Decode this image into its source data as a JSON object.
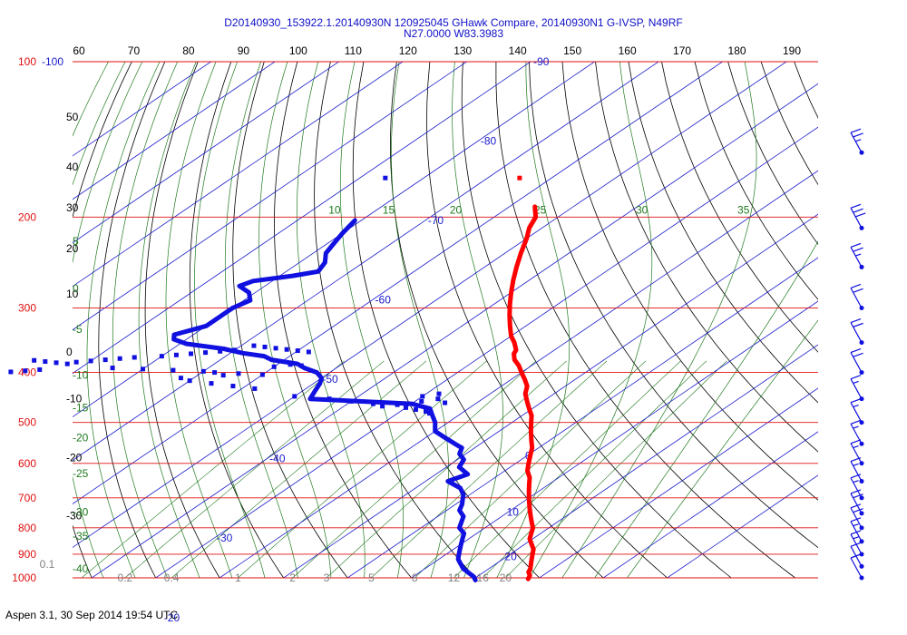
{
  "title_lines": [
    "D20140930_153922.1.20140930N 120925045 GHawk Compare, 20140930N1 G-IVSP, N49RF",
    "N27.0000 W83.3983"
  ],
  "footer": "Aspen 3.1, 30 Sep 2014  19:54 UTC",
  "colors": {
    "isobar": "#e01010",
    "temperature_trace": "#ff0000",
    "dewpoint_trace": "#1010e0",
    "isotherm": "#1a1acc",
    "dry_adiabat": "#000000",
    "moist_adiabat": "#1f7a1f",
    "mixing_ratio": "#1f7a1f",
    "wind_barb": "#1010e0"
  },
  "chart_data": {
    "type": "scatter",
    "subtype": "skew-T log-P thermodynamic diagram",
    "pressure_axis": {
      "unit": "hPa",
      "scale": "log",
      "ticks": [
        "100",
        "200",
        "300",
        "400",
        "500",
        "600",
        "700",
        "800",
        "900",
        "1000"
      ],
      "ticks_values": [
        100,
        200,
        300,
        400,
        500,
        600,
        700,
        800,
        900,
        1000
      ]
    },
    "top_axis": {
      "ticks": [
        "60",
        "70",
        "80",
        "90",
        "100",
        "110",
        "120",
        "130",
        "140",
        "150",
        "160",
        "170",
        "180",
        "190"
      ]
    },
    "isotherm_labels": [
      {
        "text": "-100",
        "t": -100
      },
      {
        "text": "-90",
        "t": -90
      },
      {
        "text": "-80",
        "t": -80
      },
      {
        "text": "-70",
        "t": -70
      },
      {
        "text": "-60",
        "t": -60
      },
      {
        "text": "-50",
        "t": -50
      },
      {
        "text": "-40",
        "t": -40
      },
      {
        "text": "-30",
        "t": -30
      },
      {
        "text": "-20",
        "t": -20
      },
      {
        "text": "0",
        "t": 0
      },
      {
        "text": "10",
        "t": 10
      },
      {
        "text": "20",
        "t": 20
      }
    ],
    "left_dry_adiabat_labels": [
      {
        "text": "50",
        "p": 128
      },
      {
        "text": "40",
        "p": 160
      },
      {
        "text": "30",
        "p": 192
      },
      {
        "text": "20",
        "p": 230
      },
      {
        "text": "10",
        "p": 282
      },
      {
        "text": "0",
        "p": 365
      },
      {
        "text": "-10",
        "p": 450
      },
      {
        "text": "-20",
        "p": 585
      },
      {
        "text": "-30",
        "p": 758
      }
    ],
    "left_moist_labels": [
      {
        "text": "5",
        "p": 223
      },
      {
        "text": "0",
        "p": 275
      },
      {
        "text": "-5",
        "p": 330
      },
      {
        "text": "-10",
        "p": 405
      },
      {
        "text": "-15",
        "p": 468
      },
      {
        "text": "-20",
        "p": 535
      },
      {
        "text": "-25",
        "p": 628
      },
      {
        "text": "-30",
        "p": 745
      },
      {
        "text": "-35",
        "p": 830
      },
      {
        "text": "-40",
        "p": 960
      }
    ],
    "moist_labels_200hPa": [
      {
        "text": "10",
        "t": 10
      },
      {
        "text": "15",
        "t": 15
      },
      {
        "text": "20",
        "t": 20
      },
      {
        "text": "25",
        "t": 25
      },
      {
        "text": "30",
        "t": 30
      },
      {
        "text": "35",
        "t": 35
      }
    ],
    "mixing_ratio_labels": [
      {
        "text": "0.1",
        "w": 0.1
      },
      {
        "text": "0.2",
        "w": 0.2
      },
      {
        "text": "0.4",
        "w": 0.4
      },
      {
        "text": "1",
        "w": 1
      },
      {
        "text": "2",
        "w": 2
      },
      {
        "text": "3",
        "w": 3
      },
      {
        "text": "5",
        "w": 5
      },
      {
        "text": "8",
        "w": 8
      },
      {
        "text": "12",
        "w": 12
      },
      {
        "text": "16",
        "w": 16
      },
      {
        "text": "20",
        "w": 20
      }
    ],
    "series": [
      {
        "temperature": [
          [
            191,
            -56
          ],
          [
            200,
            -53.5
          ],
          [
            210,
            -52
          ],
          [
            220,
            -50
          ],
          [
            235,
            -47.5
          ],
          [
            250,
            -45
          ],
          [
            265,
            -42.5
          ],
          [
            280,
            -40
          ],
          [
            295,
            -37.5
          ],
          [
            310,
            -35
          ],
          [
            325,
            -32.5
          ],
          [
            340,
            -30
          ],
          [
            350,
            -28
          ],
          [
            362,
            -26
          ],
          [
            368,
            -25.5
          ],
          [
            378,
            -24
          ],
          [
            388,
            -22
          ],
          [
            400,
            -20
          ],
          [
            412,
            -18
          ],
          [
            425,
            -16
          ],
          [
            440,
            -14.5
          ],
          [
            455,
            -12.5
          ],
          [
            470,
            -10.5
          ],
          [
            485,
            -8.5
          ],
          [
            500,
            -7
          ],
          [
            520,
            -5
          ],
          [
            540,
            -3
          ],
          [
            560,
            -1
          ],
          [
            580,
            0.5
          ],
          [
            600,
            2
          ],
          [
            620,
            3.5
          ],
          [
            640,
            5.5
          ],
          [
            660,
            7
          ],
          [
            680,
            8.5
          ],
          [
            700,
            10
          ],
          [
            720,
            11.5
          ],
          [
            740,
            13
          ],
          [
            760,
            14.5
          ],
          [
            780,
            16
          ],
          [
            800,
            17.5
          ],
          [
            820,
            18.5
          ],
          [
            840,
            19.5
          ],
          [
            860,
            21
          ],
          [
            880,
            22.5
          ],
          [
            900,
            23.5
          ],
          [
            920,
            24.5
          ],
          [
            940,
            25.5
          ],
          [
            960,
            26.5
          ],
          [
            975,
            27
          ],
          [
            990,
            28
          ],
          [
            1005,
            28.5
          ]
        ],
        "temperature_isolated": [
          [
            168,
            -65
          ]
        ],
        "dewpoint": [
          [
            203,
            -81
          ],
          [
            215,
            -80
          ],
          [
            225,
            -79
          ],
          [
            235,
            -78
          ],
          [
            245,
            -76
          ],
          [
            255,
            -75
          ],
          [
            260,
            -78
          ],
          [
            266,
            -83
          ],
          [
            272,
            -84
          ],
          [
            280,
            -81
          ],
          [
            290,
            -79
          ],
          [
            300,
            -80
          ],
          [
            312,
            -80
          ],
          [
            325,
            -80
          ],
          [
            338,
            -83
          ],
          [
            345,
            -82
          ],
          [
            352,
            -79
          ],
          [
            360,
            -72
          ],
          [
            367,
            -68
          ],
          [
            372,
            -64
          ],
          [
            378,
            -62
          ],
          [
            385,
            -57
          ],
          [
            392,
            -55
          ],
          [
            400,
            -52
          ],
          [
            410,
            -50
          ],
          [
            420,
            -49
          ],
          [
            435,
            -48
          ],
          [
            450,
            -47
          ],
          [
            460,
            -30
          ],
          [
            470,
            -26
          ],
          [
            485,
            -24
          ],
          [
            500,
            -22
          ],
          [
            510,
            -21
          ],
          [
            520,
            -20
          ],
          [
            535,
            -17
          ],
          [
            550,
            -14
          ],
          [
            560,
            -12
          ],
          [
            575,
            -11
          ],
          [
            590,
            -9
          ],
          [
            610,
            -8
          ],
          [
            630,
            -5
          ],
          [
            650,
            -6.5
          ],
          [
            670,
            -3
          ],
          [
            690,
            -1
          ],
          [
            705,
            0
          ],
          [
            720,
            1
          ],
          [
            740,
            2
          ],
          [
            760,
            4
          ],
          [
            780,
            5
          ],
          [
            800,
            6
          ],
          [
            820,
            8
          ],
          [
            840,
            9
          ],
          [
            860,
            10
          ],
          [
            880,
            11
          ],
          [
            900,
            12
          ],
          [
            920,
            13
          ],
          [
            940,
            14.5
          ],
          [
            960,
            16
          ],
          [
            980,
            18
          ],
          [
            995,
            19.5
          ],
          [
            1010,
            20.5
          ]
        ],
        "dewpoint_scatter": [
          [
            168,
            -86
          ],
          [
            355,
            -68
          ],
          [
            357,
            -66
          ],
          [
            359,
            -64
          ],
          [
            361,
            -62
          ],
          [
            363,
            -60
          ],
          [
            365,
            -58
          ],
          [
            362,
            -70
          ],
          [
            364,
            -72
          ],
          [
            366,
            -74
          ],
          [
            368,
            -76
          ],
          [
            370,
            -78
          ],
          [
            372,
            -80
          ],
          [
            374,
            -84
          ],
          [
            376,
            -86
          ],
          [
            378,
            -88
          ],
          [
            380,
            -90
          ],
          [
            382,
            -92
          ],
          [
            385,
            -93
          ],
          [
            383,
            -95
          ],
          [
            381,
            -97
          ],
          [
            379,
            -99
          ],
          [
            395,
            -96
          ],
          [
            397,
            -98
          ],
          [
            399,
            -100
          ],
          [
            401,
            -102
          ],
          [
            403,
            -104
          ],
          [
            392,
            -85
          ],
          [
            394,
            -80
          ],
          [
            396,
            -75
          ],
          [
            398,
            -70
          ],
          [
            400,
            -68
          ],
          [
            402,
            -64
          ],
          [
            404,
            -60
          ],
          [
            386,
            -58
          ],
          [
            388,
            -56
          ],
          [
            390,
            -60
          ],
          [
            405,
            -66
          ],
          [
            410,
            -72
          ],
          [
            415,
            -70
          ],
          [
            420,
            -66
          ],
          [
            425,
            -62
          ],
          [
            430,
            -58
          ],
          [
            445,
            -50
          ],
          [
            450,
            -44
          ],
          [
            455,
            -40
          ],
          [
            460,
            -36
          ],
          [
            462,
            -32
          ],
          [
            465,
            -34
          ],
          [
            468,
            -30
          ],
          [
            472,
            -28
          ],
          [
            476,
            -26
          ],
          [
            480,
            -25
          ],
          [
            445,
            -30
          ],
          [
            440,
            -28
          ],
          [
            450,
            -27
          ],
          [
            455,
            -29
          ],
          [
            458,
            -25
          ]
        ]
      }
    ],
    "wind_barbs": [
      {
        "p": 150,
        "speed_kt": 25
      },
      {
        "p": 210,
        "speed_kt": 30
      },
      {
        "p": 250,
        "speed_kt": 25
      },
      {
        "p": 300,
        "speed_kt": 20
      },
      {
        "p": 350,
        "speed_kt": 20
      },
      {
        "p": 400,
        "speed_kt": 20
      },
      {
        "p": 450,
        "speed_kt": 15
      },
      {
        "p": 500,
        "speed_kt": 15
      },
      {
        "p": 550,
        "speed_kt": 15
      },
      {
        "p": 600,
        "speed_kt": 15
      },
      {
        "p": 650,
        "speed_kt": 15
      },
      {
        "p": 700,
        "speed_kt": 15
      },
      {
        "p": 750,
        "speed_kt": 20
      },
      {
        "p": 800,
        "speed_kt": 20
      },
      {
        "p": 850,
        "speed_kt": 15
      },
      {
        "p": 900,
        "speed_kt": 15
      },
      {
        "p": 950,
        "speed_kt": 10
      },
      {
        "p": 1000,
        "speed_kt": 10
      }
    ]
  }
}
